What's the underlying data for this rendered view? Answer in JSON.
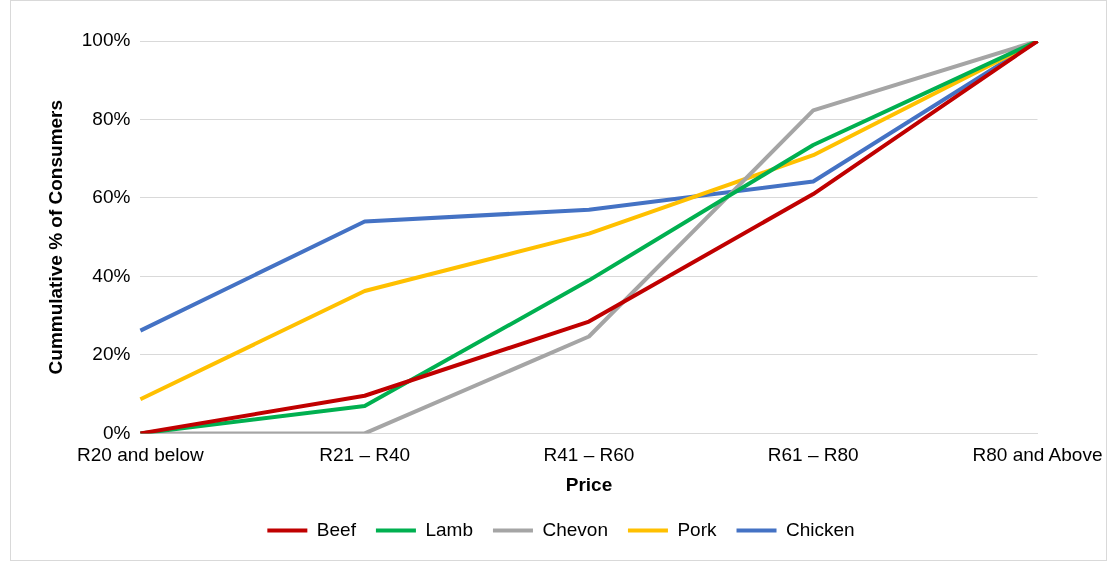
{
  "chart_data": {
    "type": "line",
    "xlabel": "Price",
    "ylabel": "Cummulative % of Consumers",
    "categories": [
      "R20 and below",
      "R21 – R40",
      "R41 – R60",
      "R61 – R80",
      "R80 and Above"
    ],
    "series": [
      {
        "name": "Beef",
        "color": "#c00000",
        "values": [
          0,
          9.6,
          28.5,
          61,
          100
        ]
      },
      {
        "name": "Lamb",
        "color": "#00b050",
        "values": [
          0,
          7,
          39,
          73.5,
          100
        ]
      },
      {
        "name": "Chevon",
        "color": "#a5a5a5",
        "values": [
          0,
          0,
          24.7,
          82.3,
          100
        ]
      },
      {
        "name": "Pork",
        "color": "#ffc000",
        "values": [
          8.7,
          36.3,
          50.9,
          70.9,
          100
        ]
      },
      {
        "name": "Chicken",
        "color": "#4472c4",
        "values": [
          26.2,
          54,
          57,
          64.2,
          100
        ]
      }
    ],
    "ylim": [
      0,
      100
    ],
    "yticks": [
      {
        "value": 0,
        "label": "0%"
      },
      {
        "value": 20,
        "label": "20%"
      },
      {
        "value": 40,
        "label": "40%"
      },
      {
        "value": 60,
        "label": "60%"
      },
      {
        "value": 80,
        "label": "80%"
      },
      {
        "value": 100,
        "label": "100%"
      }
    ],
    "grid": "y",
    "legend": "bottom",
    "marker": "none",
    "line_style": "solid"
  }
}
